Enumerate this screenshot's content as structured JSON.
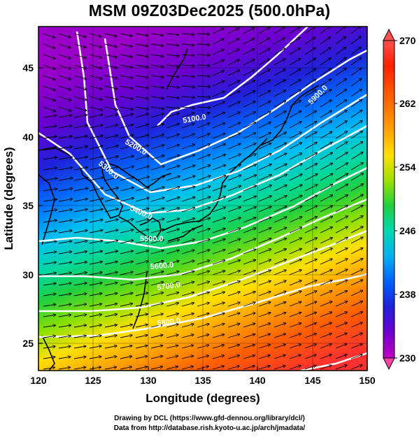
{
  "title": "MSM 09Z03Dec2025 (500.0hPa)",
  "x_axis": {
    "label": "Longitude (degrees)",
    "range": [
      120,
      150
    ],
    "ticks": [
      "120",
      "125",
      "130",
      "135",
      "140",
      "145",
      "150"
    ]
  },
  "y_axis": {
    "label": "Latitude  (degrees)",
    "range": [
      22.5,
      47.5
    ],
    "ticks": [
      "25",
      "30",
      "35",
      "40",
      "45"
    ]
  },
  "colorbar": {
    "min": 230,
    "max": 270,
    "ticks": [
      "270",
      "262",
      "254",
      "246",
      "238",
      "230"
    ],
    "colors": [
      "#ff40a8",
      "#c000c0",
      "#7000d0",
      "#2020d8",
      "#0070ff",
      "#00c0f0",
      "#00e0a0",
      "#20d040",
      "#80e000",
      "#d0e800",
      "#ffe000",
      "#ffa000",
      "#ff6000",
      "#ff2000",
      "#ff5050"
    ]
  },
  "contours": [
    {
      "label": "5100.0"
    },
    {
      "label": "5200.0"
    },
    {
      "label": "5300.0"
    },
    {
      "label": "5400.0"
    },
    {
      "label": "5500.0"
    },
    {
      "label": "5600.0"
    },
    {
      "label": "5700.0"
    },
    {
      "label": "5800.0"
    },
    {
      "label": "5900.0"
    }
  ],
  "credits": {
    "line1": "Drawing by DCL (https://www.gfd-dennou.org/library/dcl/)",
    "line2": "Data from http://database.rish.kyoto-u.ac.jp/arch/jmadata/"
  }
}
